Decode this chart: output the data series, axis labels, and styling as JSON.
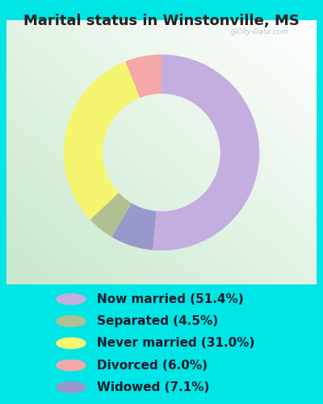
{
  "title": "Marital status in Winstonville, MS",
  "slices": [
    51.4,
    7.1,
    4.5,
    31.0,
    6.0
  ],
  "labels": [
    "Now married (51.4%)",
    "Separated (4.5%)",
    "Never married (31.0%)",
    "Divorced (6.0%)",
    "Widowed (7.1%)"
  ],
  "legend_colors": [
    "#c4aee0",
    "#b0c090",
    "#f5f570",
    "#f5a8a8",
    "#9898cc"
  ],
  "slice_colors": [
    "#c4aee0",
    "#9898cc",
    "#b0c090",
    "#f5f570",
    "#f5a8a8"
  ],
  "bg_cyan": "#00e5e5",
  "chart_bg_colors": [
    "#e8f5ee",
    "#f0faf5"
  ],
  "donut_inner": 0.6,
  "startangle": 90,
  "title_fontsize": 13,
  "legend_fontsize": 11,
  "watermark": "@City-Data.com"
}
